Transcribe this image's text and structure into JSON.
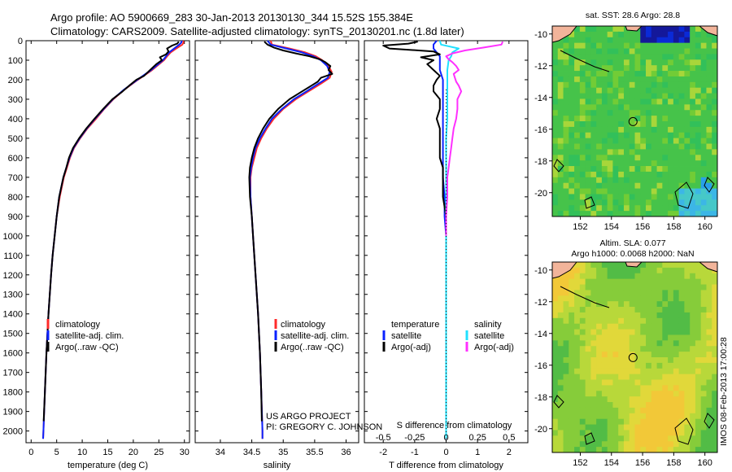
{
  "header": {
    "line1": "Argo profile: AO 5900669_283 30-Jan-2013 20130130_344 15.52S 155.384E",
    "line2": "Climatology: CARS2009. Satellite-adjusted climatology: synTS_20130201.nc (1.8d later)"
  },
  "colors": {
    "climatology": "#ff2a2a",
    "satellite": "#0a22ff",
    "argo": "#000000",
    "sal_satellite": "#20e0ff",
    "sal_argo": "#ff30ff"
  },
  "depth_axis": {
    "ylim": [
      0,
      2060
    ],
    "ticks": [
      0,
      100,
      200,
      300,
      400,
      500,
      600,
      700,
      800,
      900,
      1000,
      1100,
      1200,
      1300,
      1400,
      1500,
      1600,
      1700,
      1800,
      1900,
      2000
    ]
  },
  "chart_data": [
    {
      "id": "temperature",
      "type": "line",
      "xlabel": "temperature (deg C)",
      "xlim": [
        -1,
        31
      ],
      "xticks": [
        0,
        5,
        10,
        15,
        20,
        25,
        30
      ],
      "ylim": [
        0,
        2060
      ],
      "legend": [
        "climatology",
        "satellite-adj. clim.",
        "Argo(..raw -QC)"
      ],
      "series": [
        {
          "name": "climatology",
          "color": "#ff2a2a",
          "depth": [
            0,
            10,
            20,
            40,
            60,
            80,
            100,
            150,
            200,
            250,
            300,
            350,
            400,
            450,
            500,
            550,
            600,
            650,
            700,
            800,
            900,
            1000,
            1100,
            1200,
            1400,
            1600,
            1800,
            2000,
            2040
          ],
          "values": [
            29.8,
            29.8,
            29.6,
            28.4,
            27.3,
            26.6,
            26.0,
            23.7,
            20.9,
            18.3,
            16.1,
            14.3,
            12.7,
            11.0,
            9.6,
            8.4,
            7.6,
            7.0,
            6.4,
            5.6,
            5.0,
            4.6,
            4.2,
            3.9,
            3.4,
            3.0,
            2.7,
            2.4,
            2.35
          ]
        },
        {
          "name": "satellite-adj. clim.",
          "color": "#0a22ff",
          "depth": [
            0,
            10,
            20,
            40,
            60,
            80,
            100,
            150,
            200,
            250,
            300,
            350,
            400,
            450,
            500,
            550,
            600,
            650,
            700,
            800,
            900,
            1000,
            1100,
            1200,
            1400,
            1600,
            1800,
            2000,
            2040
          ],
          "values": [
            29.5,
            29.4,
            29.0,
            28.0,
            27.0,
            26.4,
            25.8,
            23.5,
            20.8,
            18.2,
            16.0,
            14.2,
            12.5,
            10.9,
            9.5,
            8.3,
            7.5,
            6.9,
            6.3,
            5.5,
            5.0,
            4.6,
            4.2,
            3.9,
            3.4,
            3.0,
            2.7,
            2.4,
            2.35
          ]
        },
        {
          "name": "Argo(..raw -QC)",
          "color": "#000000",
          "depth": [
            5,
            15,
            25,
            40,
            55,
            70,
            85,
            100,
            120,
            150,
            180,
            200,
            230,
            260,
            300,
            350,
            400,
            450,
            500,
            550,
            600,
            650,
            700,
            800,
            900,
            1000,
            1100,
            1200,
            1400,
            1600,
            1800,
            1950
          ],
          "values": [
            28.9,
            28.6,
            27.6,
            26.6,
            26.9,
            26.4,
            25.2,
            25.6,
            24.5,
            23.3,
            22.1,
            20.6,
            19.2,
            17.9,
            15.9,
            14.1,
            12.4,
            10.8,
            9.4,
            8.2,
            7.4,
            6.9,
            6.3,
            5.5,
            5.0,
            4.6,
            4.2,
            3.9,
            3.4,
            3.0,
            2.7,
            2.45
          ]
        }
      ]
    },
    {
      "id": "salinity",
      "type": "line",
      "xlabel": "salinity",
      "xlim": [
        33.6,
        36.2
      ],
      "xticks": [
        34,
        34.5,
        35,
        35.5,
        36
      ],
      "ylim": [
        0,
        2060
      ],
      "legend": [
        "climatology",
        "satellite-adj. clim.",
        "Argo(..raw -QC)"
      ],
      "series": [
        {
          "name": "climatology",
          "color": "#ff2a2a",
          "depth": [
            0,
            20,
            40,
            60,
            80,
            100,
            130,
            160,
            190,
            220,
            260,
            300,
            350,
            400,
            450,
            500,
            550,
            600,
            650,
            700,
            800,
            900,
            1000,
            1200,
            1400,
            1600,
            1800,
            2000,
            2040
          ],
          "values": [
            34.8,
            34.82,
            35.1,
            35.35,
            35.52,
            35.62,
            35.72,
            35.77,
            35.74,
            35.6,
            35.4,
            35.2,
            35.0,
            34.85,
            34.74,
            34.65,
            34.58,
            34.54,
            34.5,
            34.48,
            34.48,
            34.5,
            34.52,
            34.56,
            34.6,
            34.63,
            34.65,
            34.67,
            34.67
          ]
        },
        {
          "name": "satellite-adj. clim.",
          "color": "#0a22ff",
          "depth": [
            0,
            20,
            40,
            60,
            80,
            100,
            130,
            160,
            190,
            220,
            260,
            300,
            350,
            400,
            450,
            500,
            550,
            600,
            650,
            700,
            800,
            900,
            1000,
            1200,
            1400,
            1600,
            1800,
            2000,
            2040
          ],
          "values": [
            34.75,
            34.8,
            35.05,
            35.3,
            35.48,
            35.6,
            35.7,
            35.74,
            35.71,
            35.56,
            35.37,
            35.17,
            34.98,
            34.82,
            34.72,
            34.63,
            34.56,
            34.52,
            34.49,
            34.47,
            34.48,
            34.5,
            34.52,
            34.56,
            34.6,
            34.63,
            34.65,
            34.67,
            34.67
          ]
        },
        {
          "name": "Argo(..raw -QC)",
          "color": "#000000",
          "depth": [
            5,
            20,
            35,
            50,
            65,
            80,
            95,
            110,
            130,
            150,
            170,
            190,
            210,
            230,
            260,
            300,
            350,
            400,
            450,
            500,
            550,
            600,
            650,
            700,
            800,
            900,
            1000,
            1200,
            1400,
            1600,
            1800,
            1950
          ],
          "values": [
            34.7,
            34.75,
            34.85,
            35.0,
            35.2,
            35.42,
            35.58,
            35.67,
            35.75,
            35.72,
            35.78,
            35.6,
            35.55,
            35.45,
            35.3,
            35.1,
            34.92,
            34.78,
            34.68,
            34.6,
            34.54,
            34.5,
            34.47,
            34.46,
            34.47,
            34.5,
            34.52,
            34.56,
            34.6,
            34.63,
            34.65,
            34.66
          ]
        }
      ]
    },
    {
      "id": "difference",
      "type": "line",
      "xlabel": "T difference from climatology",
      "xlabel2": "S difference from climatology",
      "xlim": [
        -2.6,
        2.6
      ],
      "xticks": [
        -2,
        -1,
        0,
        1,
        2
      ],
      "x2ticks_labels": [
        "-0.5",
        "-0.25",
        "0",
        "0.25",
        "0.5"
      ],
      "x2ticks_values": [
        -0.5,
        -0.25,
        0,
        0.25,
        0.5
      ],
      "x2scale": 4,
      "ylim": [
        0,
        2060
      ],
      "legend_titles": [
        "temperature",
        "salinity"
      ],
      "legend": [
        "satellite",
        "Argo(-adj)",
        "satellite",
        "Argo(-adj)"
      ],
      "series": [
        {
          "name": "T satellite",
          "color": "#0a22ff",
          "depth": [
            0,
            20,
            40,
            60,
            80,
            100,
            150,
            200,
            300,
            400,
            500,
            600,
            700,
            800,
            900,
            1000,
            1200,
            1600,
            2040
          ],
          "values": [
            -0.3,
            -0.4,
            -0.4,
            -0.3,
            -0.2,
            -0.2,
            -0.2,
            -0.1,
            -0.1,
            -0.1,
            -0.1,
            -0.1,
            -0.1,
            -0.05,
            -0.05,
            0,
            0,
            0,
            0
          ]
        },
        {
          "name": "T Argo(-adj)",
          "color": "#000000",
          "depth": [
            5,
            15,
            25,
            40,
            55,
            70,
            85,
            100,
            120,
            150,
            180,
            200,
            230,
            260,
            300,
            350,
            400,
            450,
            500,
            550,
            600,
            650,
            700,
            800,
            900,
            1000
          ],
          "values": [
            -0.9,
            -1.2,
            -2.0,
            -1.8,
            -0.4,
            -0.2,
            -0.8,
            -0.4,
            -0.6,
            -0.4,
            -0.2,
            -0.3,
            -0.4,
            -0.4,
            -0.2,
            -0.2,
            -0.3,
            -0.2,
            -0.2,
            -0.2,
            -0.2,
            -0.1,
            -0.1,
            -0.1,
            0,
            0
          ]
        },
        {
          "name": "S satellite",
          "color": "#20e0ff",
          "depth": [
            0,
            20,
            40,
            60,
            80,
            100,
            150,
            200,
            300,
            400,
            500,
            600,
            700,
            800,
            900,
            1000,
            1200,
            1600,
            2040
          ],
          "values": [
            -0.05,
            -0.04,
            0.1,
            0.05,
            0.04,
            0.02,
            0.01,
            0.01,
            0.01,
            0.01,
            0,
            0,
            0,
            0,
            0,
            0,
            0,
            0,
            0
          ]
        },
        {
          "name": "S Argo(-adj)",
          "color": "#ff30ff",
          "depth": [
            5,
            20,
            35,
            50,
            65,
            80,
            95,
            110,
            130,
            150,
            170,
            190,
            210,
            230,
            260,
            300,
            350,
            400,
            450,
            500,
            550,
            600,
            650,
            700,
            800,
            900,
            1000
          ],
          "values": [
            0.45,
            0.44,
            0.3,
            0.15,
            0.05,
            0.0,
            0.02,
            0.05,
            0.08,
            0.1,
            0.06,
            0.07,
            0.08,
            0.1,
            0.12,
            0.09,
            0.09,
            0.08,
            0.06,
            0.05,
            0.04,
            0.03,
            0.02,
            0.01,
            0.01,
            0,
            0
          ]
        }
      ]
    },
    {
      "id": "sst_map",
      "type": "heatmap",
      "title": "sat. SST: 28.6  Argo: 28.8",
      "xticks": [
        152,
        154,
        156,
        158,
        160
      ],
      "yticks": [
        -10,
        -12,
        -14,
        -16,
        -18,
        -20
      ],
      "xlim": [
        150.2,
        160.8
      ],
      "ylim": [
        -21.5,
        -9.5
      ],
      "float_position": {
        "lon": 155.384,
        "lat": -15.52
      }
    },
    {
      "id": "sla_map",
      "type": "heatmap",
      "title": "Altim. SLA: 0.077",
      "subtitle": "Argo h1000: 0.0068  h2000: NaN",
      "xticks": [
        152,
        154,
        156,
        158,
        160
      ],
      "yticks": [
        -10,
        -12,
        -14,
        -16,
        -18,
        -20
      ],
      "xlim": [
        150.2,
        160.8
      ],
      "ylim": [
        -21.5,
        -9.5
      ],
      "float_position": {
        "lon": 155.384,
        "lat": -15.52
      }
    }
  ],
  "credit": {
    "line1": "US ARGO PROJECT",
    "line2": "PI: GREGORY C. JOHNSON"
  },
  "side_stamp": "IMOS 08-Feb-2013 17:00:28"
}
